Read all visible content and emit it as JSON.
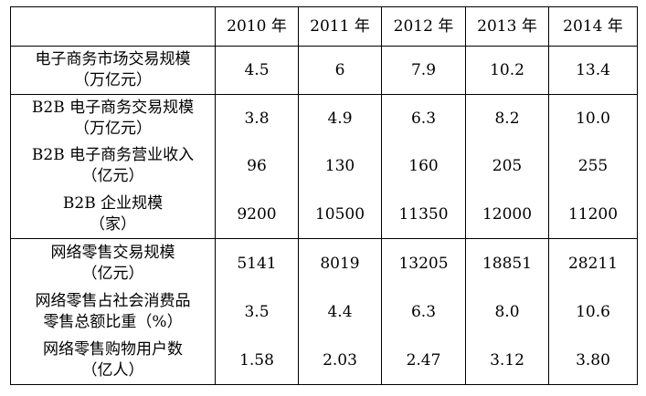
{
  "columns": [
    "2010 年",
    "2011 年",
    "2012 年",
    "2013 年",
    "2014 年"
  ],
  "rows": [
    {
      "label": [
        "电子商务市场交易规模",
        "（万亿元）"
      ],
      "values": [
        "4.5",
        "6",
        "7.9",
        "10.2",
        "13.4"
      ]
    },
    {
      "label": [
        "B2B 电子商务交易规模",
        "（万亿元）"
      ],
      "values": [
        "3.8",
        "4.9",
        "6.3",
        "8.2",
        "10.0"
      ]
    },
    {
      "label": [
        "B2B 电子商务营业收入",
        "（亿元）"
      ],
      "values": [
        "96",
        "130",
        "160",
        "205",
        "255"
      ]
    },
    {
      "label": [
        "B2B 企业规模",
        "（家）"
      ],
      "values": [
        "9200",
        "10500",
        "11350",
        "12000",
        "11200"
      ]
    },
    {
      "label": [
        "网络零售交易规模",
        "（亿元）"
      ],
      "values": [
        "5141",
        "8019",
        "13205",
        "18851",
        "28211"
      ]
    },
    {
      "label": [
        "网络零售占社会消费品",
        "零售总额比重（%）"
      ],
      "values": [
        "3.5",
        "4.4",
        "6.3",
        "8.0",
        "10.6"
      ]
    },
    {
      "label": [
        "网络零售购物用户数",
        "（亿人）"
      ],
      "values": [
        "1.58",
        "2.03",
        "2.47",
        "3.12",
        "3.80"
      ]
    }
  ]
}
